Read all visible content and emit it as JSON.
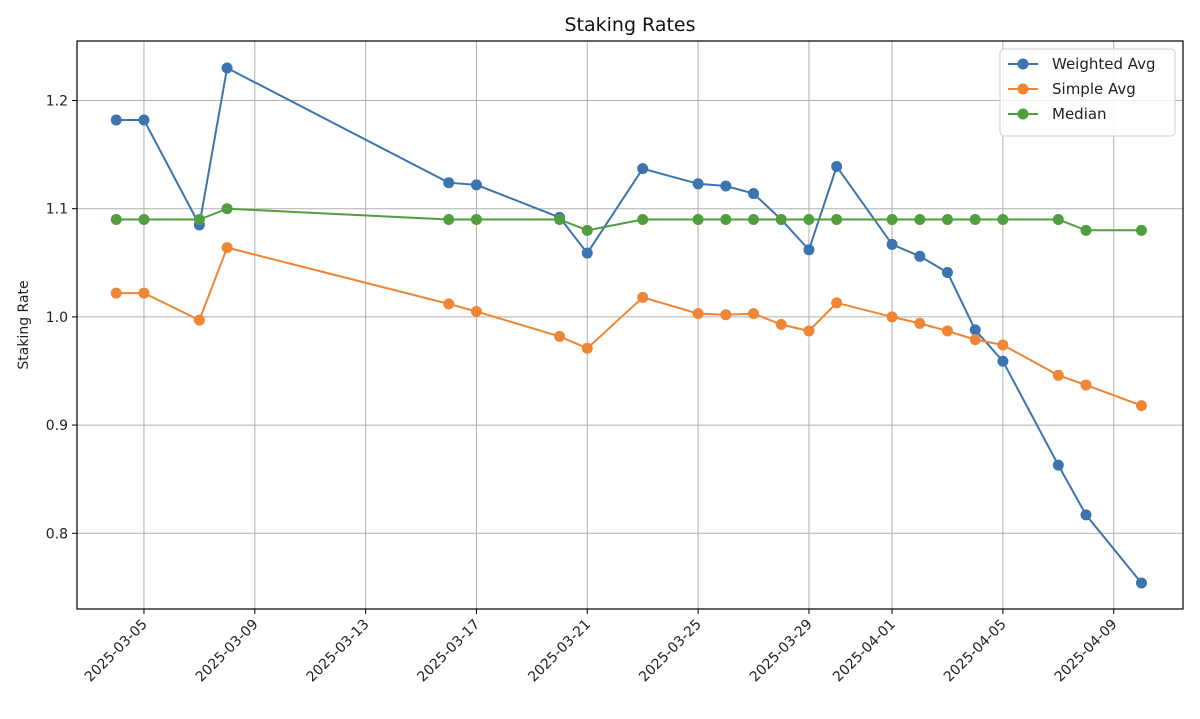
{
  "chart_data": {
    "type": "line",
    "title": "Staking Rates",
    "xlabel": "",
    "ylabel": "Staking Rate",
    "x_tick_labels": [
      "2025-03-05",
      "2025-03-09",
      "2025-03-13",
      "2025-03-17",
      "2025-03-21",
      "2025-03-25",
      "2025-03-29",
      "2025-04-01",
      "2025-04-05",
      "2025-04-09"
    ],
    "y_ticks": [
      0.8,
      0.9,
      1.0,
      1.1,
      1.2
    ],
    "y_tick_labels": [
      "0.8",
      "0.9",
      "1.0",
      "1.1",
      "1.2"
    ],
    "ylim": [
      0.73,
      1.255
    ],
    "xlim": [
      "2025-03-02T14:00",
      "2025-04-11T12:00"
    ],
    "grid": true,
    "legend_position": "top-right",
    "x": [
      "2025-03-04",
      "2025-03-05",
      "2025-03-07",
      "2025-03-08",
      "2025-03-16",
      "2025-03-17",
      "2025-03-20",
      "2025-03-21",
      "2025-03-23",
      "2025-03-25",
      "2025-03-26",
      "2025-03-27",
      "2025-03-28",
      "2025-03-29",
      "2025-03-30",
      "2025-04-01",
      "2025-04-02",
      "2025-04-03",
      "2025-04-04",
      "2025-04-05",
      "2025-04-07",
      "2025-04-08",
      "2025-04-10"
    ],
    "series": [
      {
        "name": "Weighted Avg",
        "color": "#3a75b0",
        "values": [
          1.182,
          1.182,
          1.085,
          1.23,
          1.124,
          1.122,
          1.092,
          1.059,
          1.137,
          1.123,
          1.121,
          1.114,
          1.09,
          1.062,
          1.139,
          1.067,
          1.056,
          1.041,
          0.988,
          0.959,
          0.863,
          0.817,
          0.754
        ]
      },
      {
        "name": "Simple Avg",
        "color": "#ef8636",
        "values": [
          1.022,
          1.022,
          0.997,
          1.064,
          1.012,
          1.005,
          0.982,
          0.971,
          1.018,
          1.003,
          1.002,
          1.003,
          0.993,
          0.987,
          1.013,
          1.0,
          0.994,
          0.987,
          0.979,
          0.974,
          0.946,
          0.937,
          0.918
        ]
      },
      {
        "name": "Median",
        "color": "#519e3e",
        "values": [
          1.09,
          1.09,
          1.09,
          1.1,
          1.09,
          1.09,
          1.09,
          1.08,
          1.09,
          1.09,
          1.09,
          1.09,
          1.09,
          1.09,
          1.09,
          1.09,
          1.09,
          1.09,
          1.09,
          1.09,
          1.09,
          1.08,
          1.08
        ]
      }
    ]
  }
}
